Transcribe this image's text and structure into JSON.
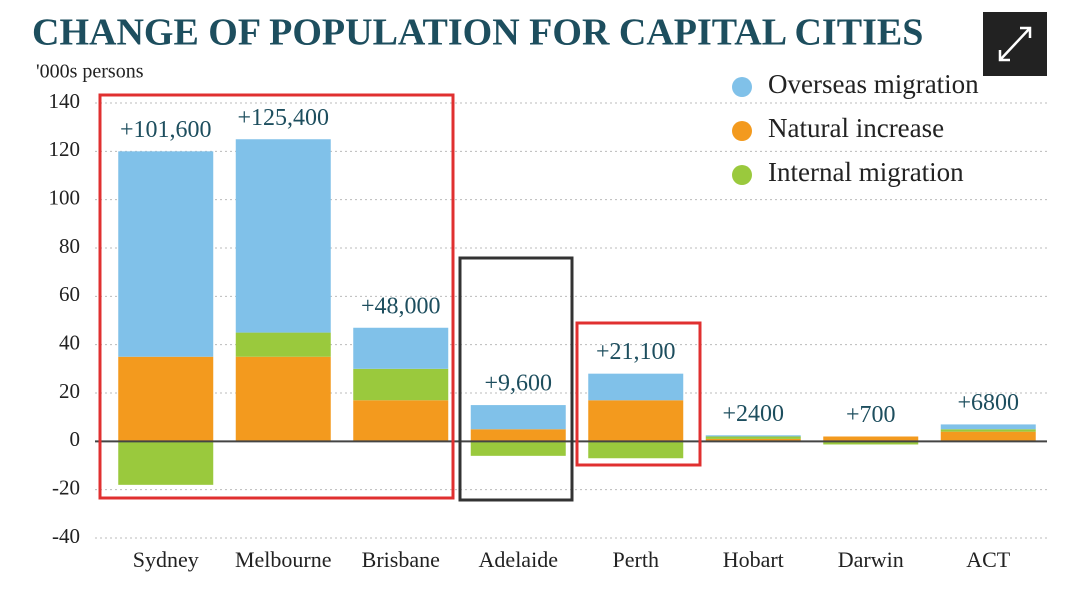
{
  "chart_data": {
    "type": "stacked_bar",
    "title": "CHANGE OF POPULATION FOR CAPITAL CITIES",
    "y_label": "'000s persons",
    "categories": [
      "Sydney",
      "Melbourne",
      "Brisbane",
      "Adelaide",
      "Perth",
      "Hobart",
      "Darwin",
      "ACT"
    ],
    "series": [
      {
        "name": "Natural increase",
        "color": "#f39a1e",
        "values": [
          35,
          35,
          17,
          5,
          17,
          1,
          2,
          4
        ]
      },
      {
        "name": "Internal migration",
        "color": "#9ac93d",
        "values": [
          -18,
          10,
          13,
          -6,
          -7,
          1,
          -1.3,
          1
        ]
      },
      {
        "name": "Overseas migration",
        "color": "#80c1e9",
        "values": [
          85,
          80,
          17,
          10,
          11,
          0.5,
          0,
          2
        ]
      }
    ],
    "legend_order": [
      2,
      0,
      1
    ],
    "totals": {
      "values": [
        101.6,
        125.4,
        48,
        9.6,
        21.1,
        2.4,
        0.7,
        6.8
      ],
      "value_labels": [
        "+101,600",
        "+125,400",
        "+48,000",
        "+9,600",
        "+21,100",
        "+2400",
        "+700",
        "+6800"
      ]
    },
    "ylim": [
      -40,
      140
    ],
    "yticks": [
      -40,
      -20,
      0,
      20,
      40,
      60,
      80,
      100,
      120,
      140
    ],
    "grid": true
  }
}
